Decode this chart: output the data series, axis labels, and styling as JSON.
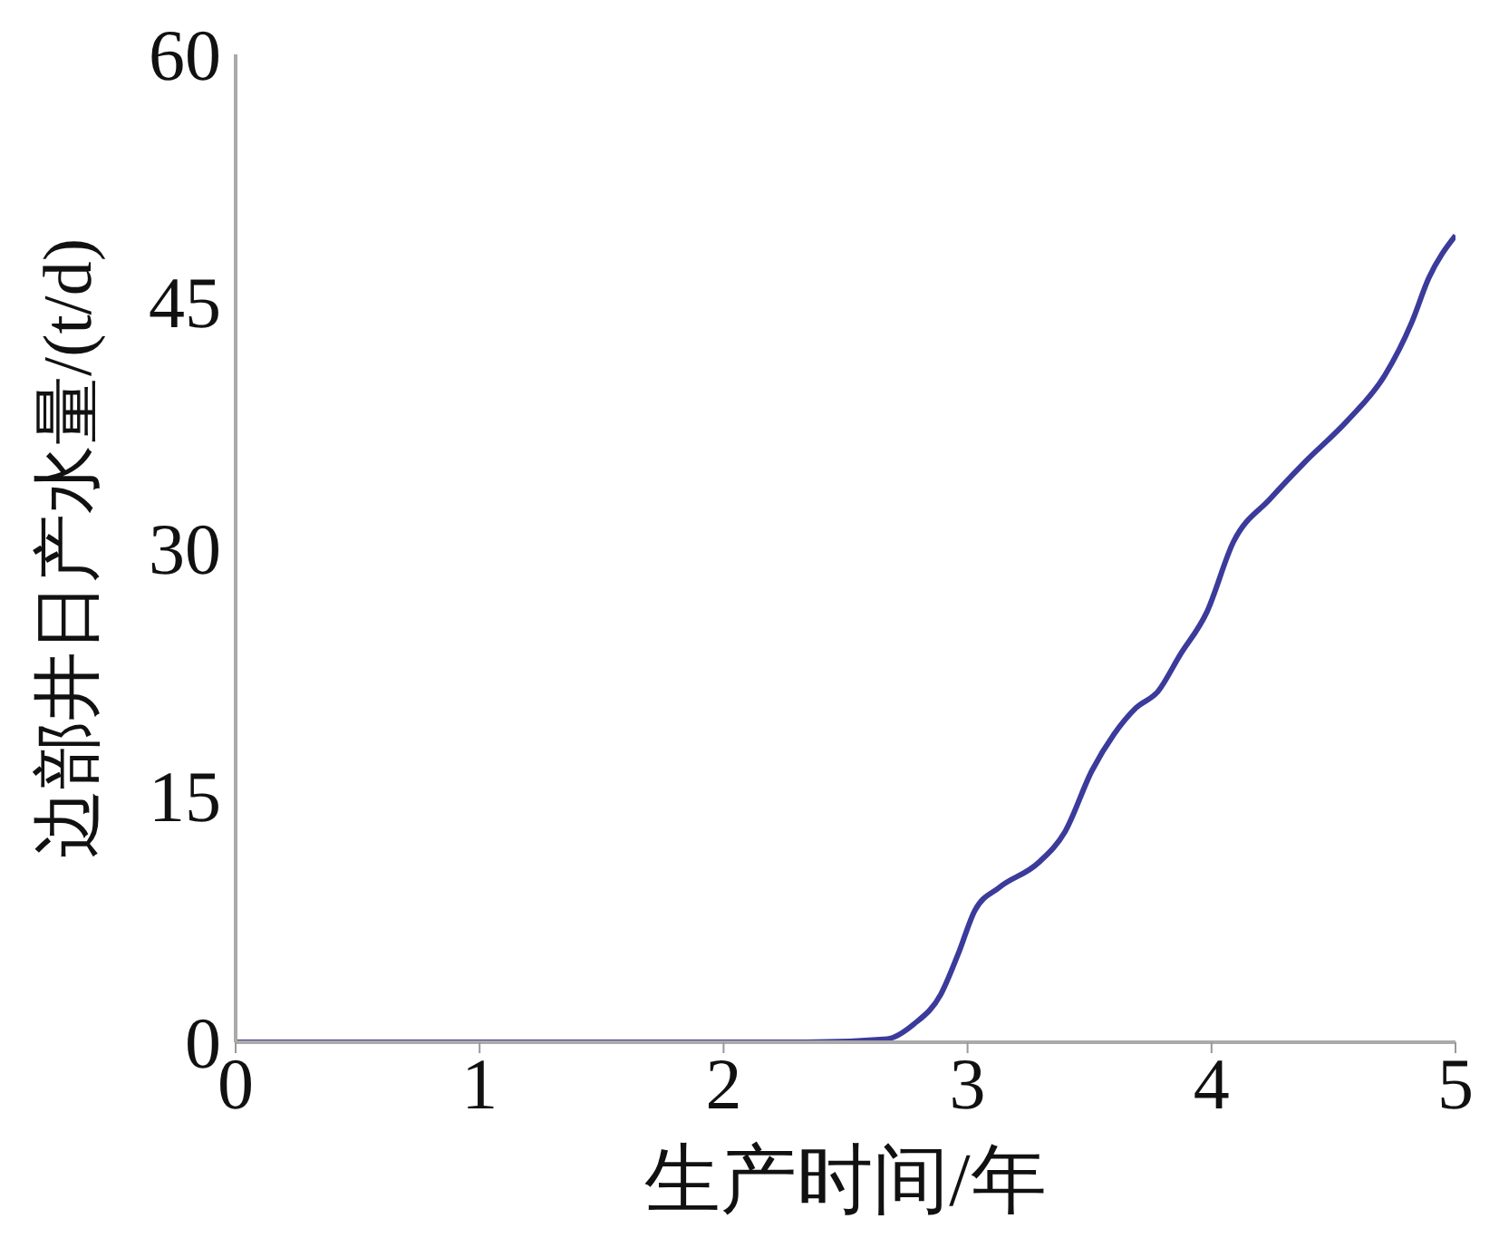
{
  "chart_data": {
    "type": "line",
    "xlabel": "生产时间/年",
    "ylabel": "边部井日产水量/(t/d)",
    "x": [
      0,
      0.5,
      1,
      1.5,
      2,
      2.34,
      2.67,
      2.78,
      2.89,
      2.96,
      3.03,
      3.13,
      3.29,
      3.4,
      3.51,
      3.6,
      3.69,
      3.78,
      3.87,
      3.98,
      4.09,
      4.24,
      4.38,
      4.56,
      4.71,
      4.82,
      4.89,
      5
    ],
    "series": [
      {
        "color": "#3b3b9c",
        "values": [
          0,
          0,
          0,
          0,
          0,
          0,
          0.2,
          1.1,
          2.9,
          5.3,
          8,
          9.4,
          10.9,
          12.8,
          16.5,
          18.7,
          20.3,
          21.3,
          23.5,
          26.1,
          30.4,
          33,
          35.2,
          37.8,
          40.5,
          43.7,
          46.4,
          49
        ]
      }
    ],
    "xlim": [
      0,
      5
    ],
    "xticks": [
      0,
      1,
      2,
      3,
      4,
      5
    ],
    "ylim": [
      0,
      60
    ],
    "yticks": [
      0,
      15,
      30,
      45,
      60
    ],
    "grid": false,
    "legend": false,
    "marker": "none",
    "line_style": "solid"
  }
}
